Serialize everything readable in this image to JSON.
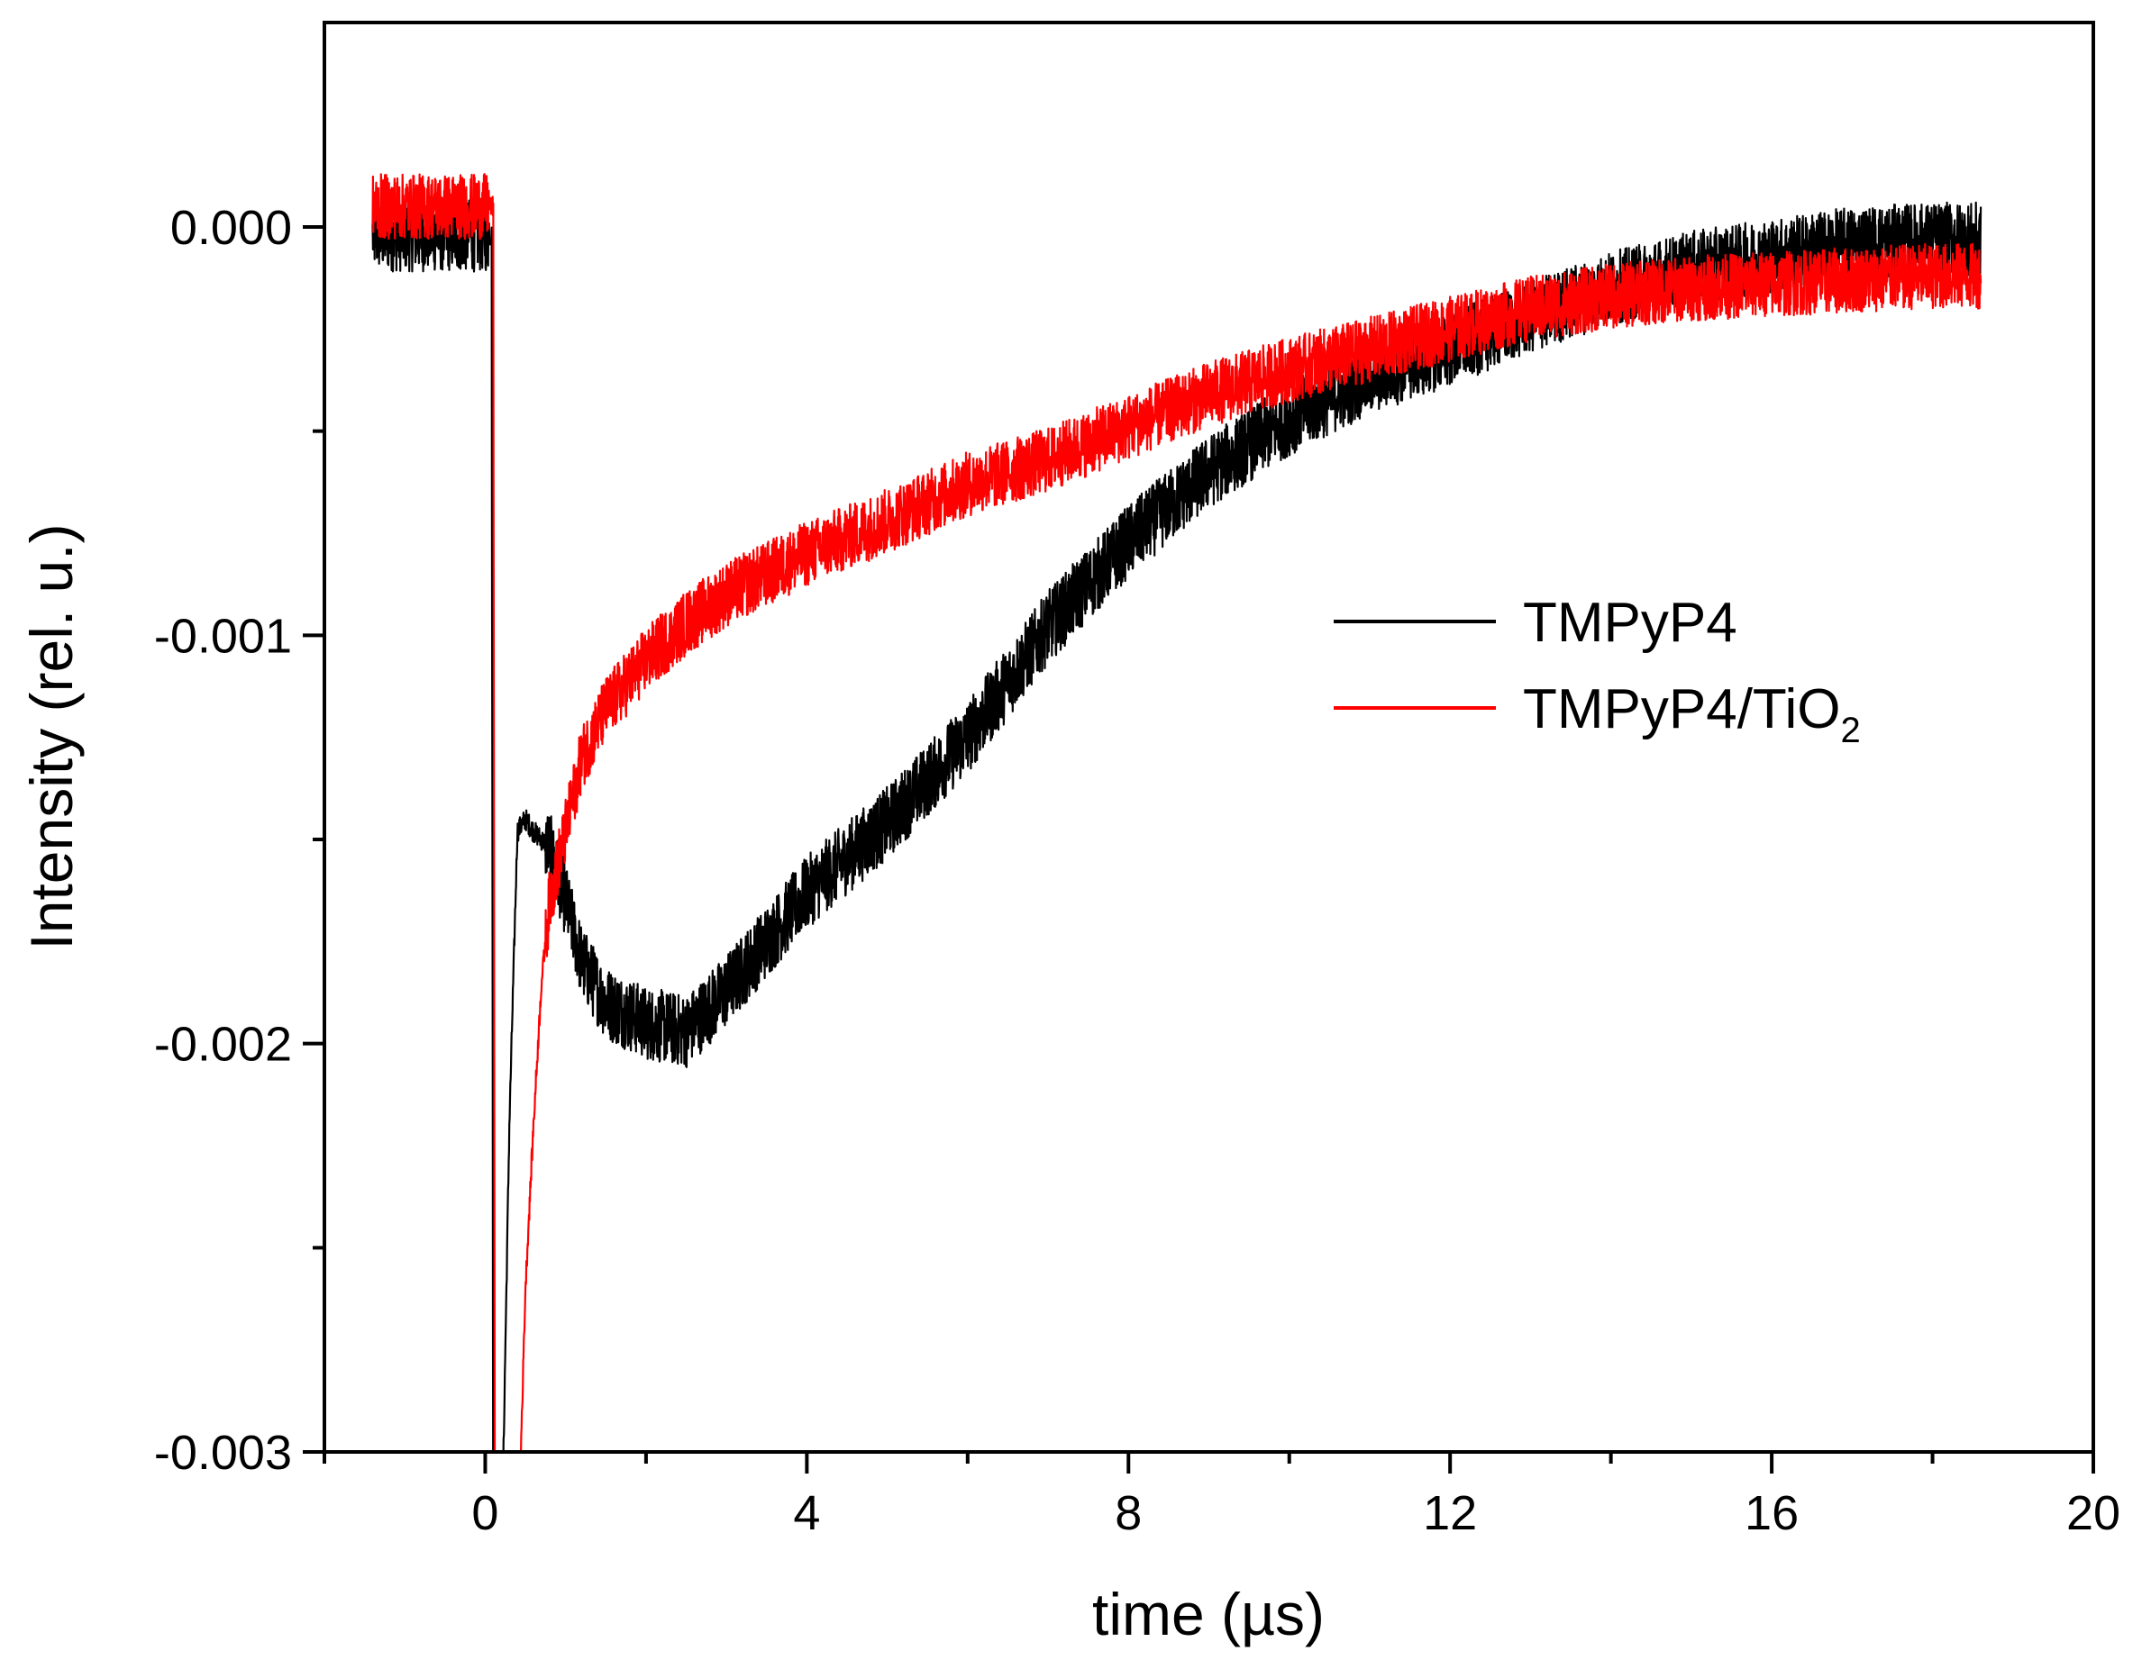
{
  "chart_data": {
    "type": "line",
    "title": "",
    "xlabel": "time (µs)",
    "ylabel": "Intensity (rel. u.)",
    "xlim": [
      -2,
      20
    ],
    "ylim": [
      -0.003,
      0.0005
    ],
    "x_ticks": [
      0,
      4,
      8,
      12,
      16,
      20
    ],
    "x_tick_labels": [
      "0",
      "4",
      "8",
      "12",
      "16",
      "20"
    ],
    "x_minor_ticks": [
      -2,
      2,
      6,
      10,
      14,
      18
    ],
    "y_ticks": [
      -0.003,
      -0.002,
      -0.001,
      0.0
    ],
    "y_tick_labels": [
      "-0.003",
      "-0.002",
      "-0.001",
      "0.000"
    ],
    "y_minor_ticks": [
      -0.0025,
      -0.0015,
      -0.0005
    ],
    "grid": false,
    "legend_position": "center-right",
    "series": [
      {
        "name": "TMPyP4",
        "color": "#000000",
        "noise": 9e-05,
        "x": [
          -1.4,
          -0.6,
          0.0,
          0.08,
          0.1,
          0.2,
          0.3,
          0.4,
          0.5,
          0.6,
          0.8,
          1.0,
          1.2,
          1.5,
          2.0,
          2.5,
          3.0,
          3.5,
          4.0,
          5.0,
          6.0,
          7.0,
          8.0,
          9.0,
          10.0,
          11.0,
          12.0,
          13.0,
          14.0,
          15.0,
          16.0,
          17.0,
          18.0,
          18.6
        ],
        "y": [
          -2e-05,
          -2e-05,
          -2e-05,
          -2e-05,
          -0.0033,
          -0.0033,
          -0.0022,
          -0.00148,
          -0.00145,
          -0.00148,
          -0.00152,
          -0.00165,
          -0.0018,
          -0.0019,
          -0.00195,
          -0.00197,
          -0.00187,
          -0.00175,
          -0.00163,
          -0.00146,
          -0.00125,
          -0.00098,
          -0.00077,
          -0.0006,
          -0.00047,
          -0.00037,
          -0.0003,
          -0.00022,
          -0.00015,
          -0.0001,
          -7e-05,
          -4e-05,
          -3e-05,
          -3e-05
        ]
      },
      {
        "name": "TMPyP4/TiO₂",
        "color": "#ff0000",
        "noise": 8e-05,
        "x": [
          -1.4,
          -0.6,
          0.0,
          0.1,
          0.12,
          0.4,
          0.5,
          0.6,
          0.7,
          0.8,
          1.0,
          1.2,
          1.5,
          2.0,
          2.5,
          3.0,
          4.0,
          5.0,
          6.0,
          7.0,
          8.0,
          9.0,
          10.0,
          11.0,
          12.0,
          13.0,
          14.0,
          15.0,
          16.0,
          17.0,
          18.0,
          18.6
        ],
        "y": [
          5e-05,
          5e-05,
          5e-05,
          5e-05,
          -0.0033,
          -0.0033,
          -0.0026,
          -0.0022,
          -0.00185,
          -0.00165,
          -0.00148,
          -0.0013,
          -0.00118,
          -0.00106,
          -0.00097,
          -0.0009,
          -0.0008,
          -0.00072,
          -0.00063,
          -0.00057,
          -0.00049,
          -0.00041,
          -0.00035,
          -0.0003,
          -0.00025,
          -0.0002,
          -0.00017,
          -0.00015,
          -0.00014,
          -0.00013,
          -0.00012,
          -0.00012
        ]
      }
    ]
  },
  "legend": {
    "items": [
      {
        "text": "TMPyP4"
      },
      {
        "text": "TMPyP4/TiO",
        "sub": "2"
      }
    ]
  }
}
